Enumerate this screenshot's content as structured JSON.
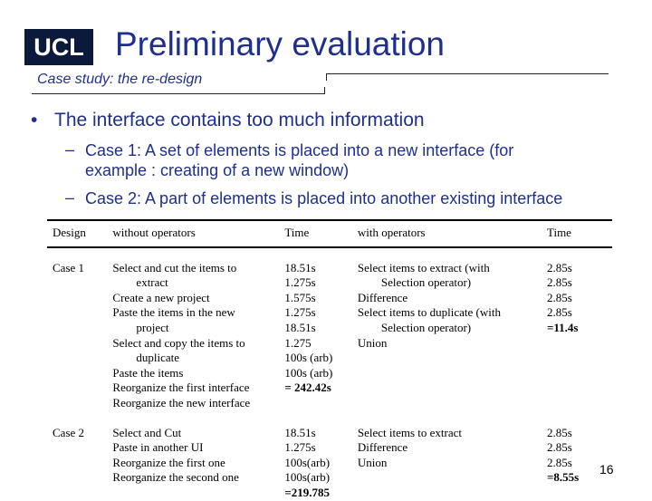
{
  "header": {
    "logo": "UCL",
    "title": "Preliminary evaluation",
    "subtitle": "Case study: the re-design"
  },
  "content": {
    "bullet": "The interface contains too much information",
    "sub_items": [
      {
        "dash": "–",
        "text": "Case 1: A set of elements is placed into a new interface (for example : creating of a new window)"
      },
      {
        "dash": "–",
        "text": "Case 2: A part of elements is placed into another existing interface"
      }
    ]
  },
  "table": {
    "headers": [
      "Design",
      "without operators",
      "Time",
      "with operators",
      "Time"
    ],
    "rows": [
      {
        "design": "Case 1",
        "without_ops": [
          {
            "text": "Select and cut the items to",
            "indent": false
          },
          {
            "text": "extract",
            "indent": true
          },
          {
            "text": "Create a new project",
            "indent": false
          },
          {
            "text": "Paste the items in the new",
            "indent": false
          },
          {
            "text": "project",
            "indent": true
          },
          {
            "text": "Select and copy the items to",
            "indent": false
          },
          {
            "text": "duplicate",
            "indent": true
          },
          {
            "text": "Paste the items",
            "indent": false
          },
          {
            "text": "Reorganize the first interface",
            "indent": false
          },
          {
            "text": "Reorganize the new interface",
            "indent": false
          }
        ],
        "time1": [
          {
            "text": "18.51s"
          },
          {
            "text": "1.275s"
          },
          {
            "text": "1.575s"
          },
          {
            "text": "1.275s"
          },
          {
            "text": "18.51s"
          },
          {
            "text": "1.275"
          },
          {
            "text": "100s (arb)"
          },
          {
            "text": "100s (arb)"
          },
          {
            "text": "= 242.42s",
            "bold": true
          }
        ],
        "with_ops": [
          {
            "text": "Select items to extract (with",
            "indent": false
          },
          {
            "text": "Selection operator)",
            "indent": true
          },
          {
            "text": "Difference",
            "indent": false
          },
          {
            "text": "Select items to duplicate (with",
            "indent": false
          },
          {
            "text": "Selection operator)",
            "indent": true
          },
          {
            "text": "Union",
            "indent": false
          }
        ],
        "time2": [
          {
            "text": "2.85s"
          },
          {
            "text": "2.85s"
          },
          {
            "text": "2.85s"
          },
          {
            "text": "2.85s"
          },
          {
            "text": "=11.4s",
            "bold": true
          }
        ]
      },
      {
        "design": "Case 2",
        "without_ops": [
          {
            "text": "Select and Cut",
            "indent": false
          },
          {
            "text": "Paste in another UI",
            "indent": false
          },
          {
            "text": "Reorganize the first one",
            "indent": false
          },
          {
            "text": "Reorganize the second one",
            "indent": false
          }
        ],
        "time1": [
          {
            "text": "18.51s"
          },
          {
            "text": "1.275s"
          },
          {
            "text": "100s(arb)"
          },
          {
            "text": "100s(arb)"
          },
          {
            "text": "=219.785",
            "bold": true
          }
        ],
        "with_ops": [
          {
            "text": "Select items to extract",
            "indent": false
          },
          {
            "text": "Difference",
            "indent": false
          },
          {
            "text": "Union",
            "indent": false
          }
        ],
        "time2": [
          {
            "text": "2.85s"
          },
          {
            "text": "2.85s"
          },
          {
            "text": "2.85s"
          },
          {
            "text": "=8.55s",
            "bold": true
          }
        ]
      }
    ]
  },
  "footer": {
    "page_number": "16"
  },
  "colors": {
    "accent": "#1f2f8f",
    "logo_bg": "#0b1a3a"
  }
}
